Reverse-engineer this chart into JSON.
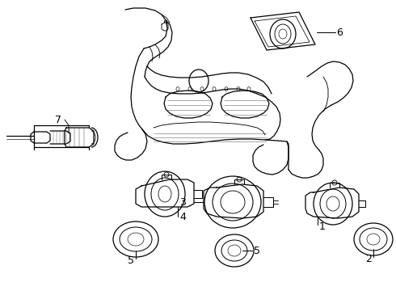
{
  "background_color": "#ffffff",
  "fig_width": 4.9,
  "fig_height": 3.6,
  "dpi": 100,
  "line_color": "#000000",
  "line_width": 0.9
}
